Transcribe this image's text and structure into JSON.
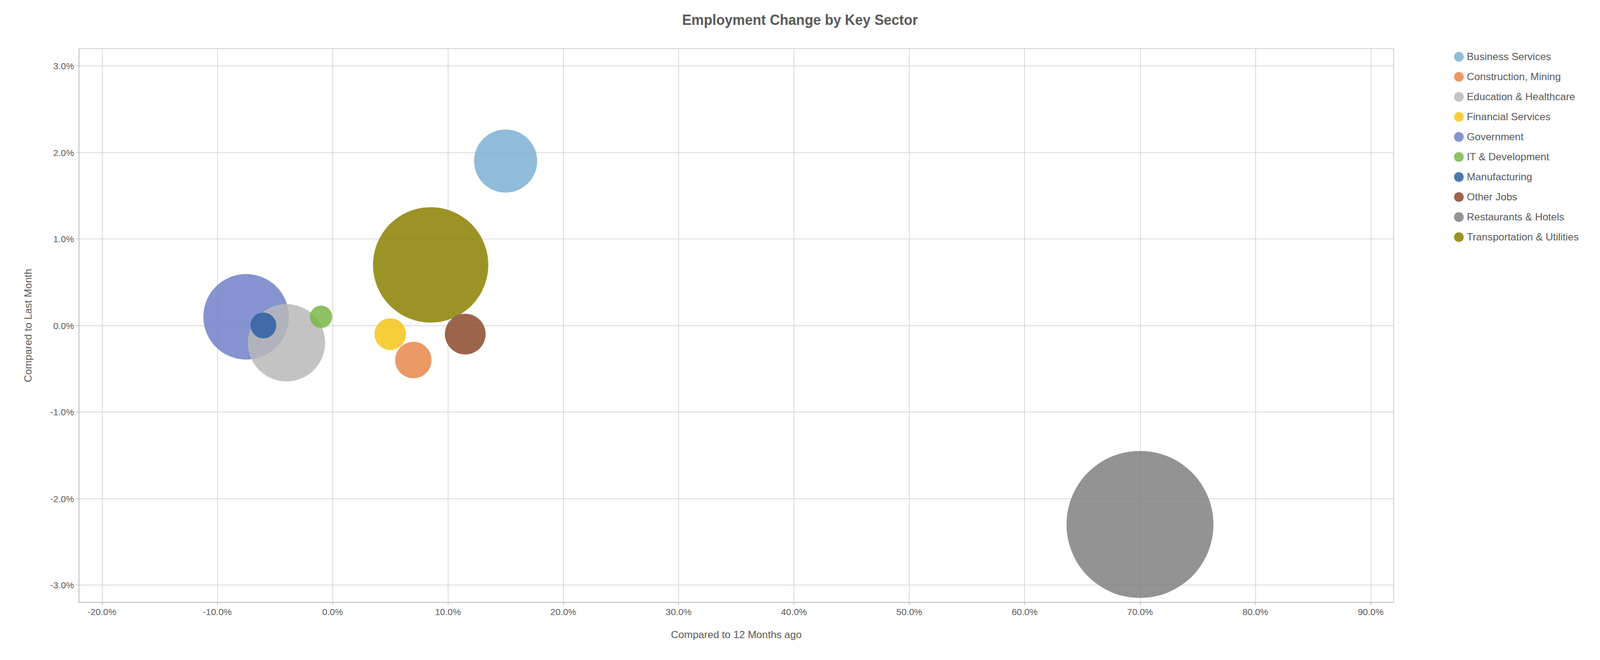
{
  "chart_data": {
    "type": "bubble",
    "title": "Employment Change by Key Sector",
    "xlabel": "Compared to 12 Months ago",
    "ylabel": "Compared to Last Month",
    "xlim": [
      -0.22,
      0.92
    ],
    "ylim": [
      -0.032,
      0.032
    ],
    "xticks": [
      {
        "value": -0.2,
        "label": "-20.0%"
      },
      {
        "value": -0.1,
        "label": "-10.0%"
      },
      {
        "value": 0.0,
        "label": "0.0%"
      },
      {
        "value": 0.1,
        "label": "10.0%"
      },
      {
        "value": 0.2,
        "label": "20.0%"
      },
      {
        "value": 0.3,
        "label": "30.0%"
      },
      {
        "value": 0.4,
        "label": "40.0%"
      },
      {
        "value": 0.5,
        "label": "50.0%"
      },
      {
        "value": 0.6,
        "label": "60.0%"
      },
      {
        "value": 0.7,
        "label": "70.0%"
      },
      {
        "value": 0.8,
        "label": "80.0%"
      },
      {
        "value": 0.9,
        "label": "90.0%"
      }
    ],
    "yticks": [
      {
        "value": -0.03,
        "label": "-3.0%"
      },
      {
        "value": -0.02,
        "label": "-2.0%"
      },
      {
        "value": -0.01,
        "label": "-1.0%"
      },
      {
        "value": 0.0,
        "label": "0.0%"
      },
      {
        "value": 0.01,
        "label": "1.0%"
      },
      {
        "value": 0.02,
        "label": "2.0%"
      },
      {
        "value": 0.03,
        "label": "3.0%"
      }
    ],
    "grid": true,
    "legend": "upper right",
    "series": [
      {
        "name": "Business Services",
        "color": "#7cafd4",
        "x": [
          0.15
        ],
        "values": [
          0.019
        ],
        "size": [
          12000
        ]
      },
      {
        "name": "Construction, Mining",
        "color": "#e8874a",
        "x": [
          0.07
        ],
        "values": [
          -0.004
        ],
        "size": [
          4000
        ]
      },
      {
        "name": "Education & Healthcare",
        "color": "#b8b8b8",
        "x": [
          -0.04
        ],
        "values": [
          -0.002
        ],
        "size": [
          18000
        ]
      },
      {
        "name": "Financial Services",
        "color": "#f5c518",
        "x": [
          0.05
        ],
        "values": [
          -0.001
        ],
        "size": [
          3000
        ]
      },
      {
        "name": "Government",
        "color": "#7080c8",
        "x": [
          -0.075
        ],
        "values": [
          0.001
        ],
        "size": [
          22000
        ]
      },
      {
        "name": "IT & Development",
        "color": "#7ab648",
        "x": [
          -0.01
        ],
        "values": [
          0.001
        ],
        "size": [
          1500
        ]
      },
      {
        "name": "Manufacturing",
        "color": "#2e5fa3",
        "x": [
          -0.06
        ],
        "values": [
          0.0
        ],
        "size": [
          2000
        ]
      },
      {
        "name": "Other Jobs",
        "color": "#8b4a2b",
        "x": [
          0.115
        ],
        "values": [
          -0.001
        ],
        "size": [
          5000
        ]
      },
      {
        "name": "Restaurants & Hotels",
        "color": "#808080",
        "x": [
          0.7
        ],
        "values": [
          -0.023
        ],
        "size": [
          65000
        ]
      },
      {
        "name": "Transportation & Utilities",
        "color": "#8b8000",
        "x": [
          0.085
        ],
        "values": [
          0.007
        ],
        "size": [
          40000
        ]
      }
    ]
  }
}
